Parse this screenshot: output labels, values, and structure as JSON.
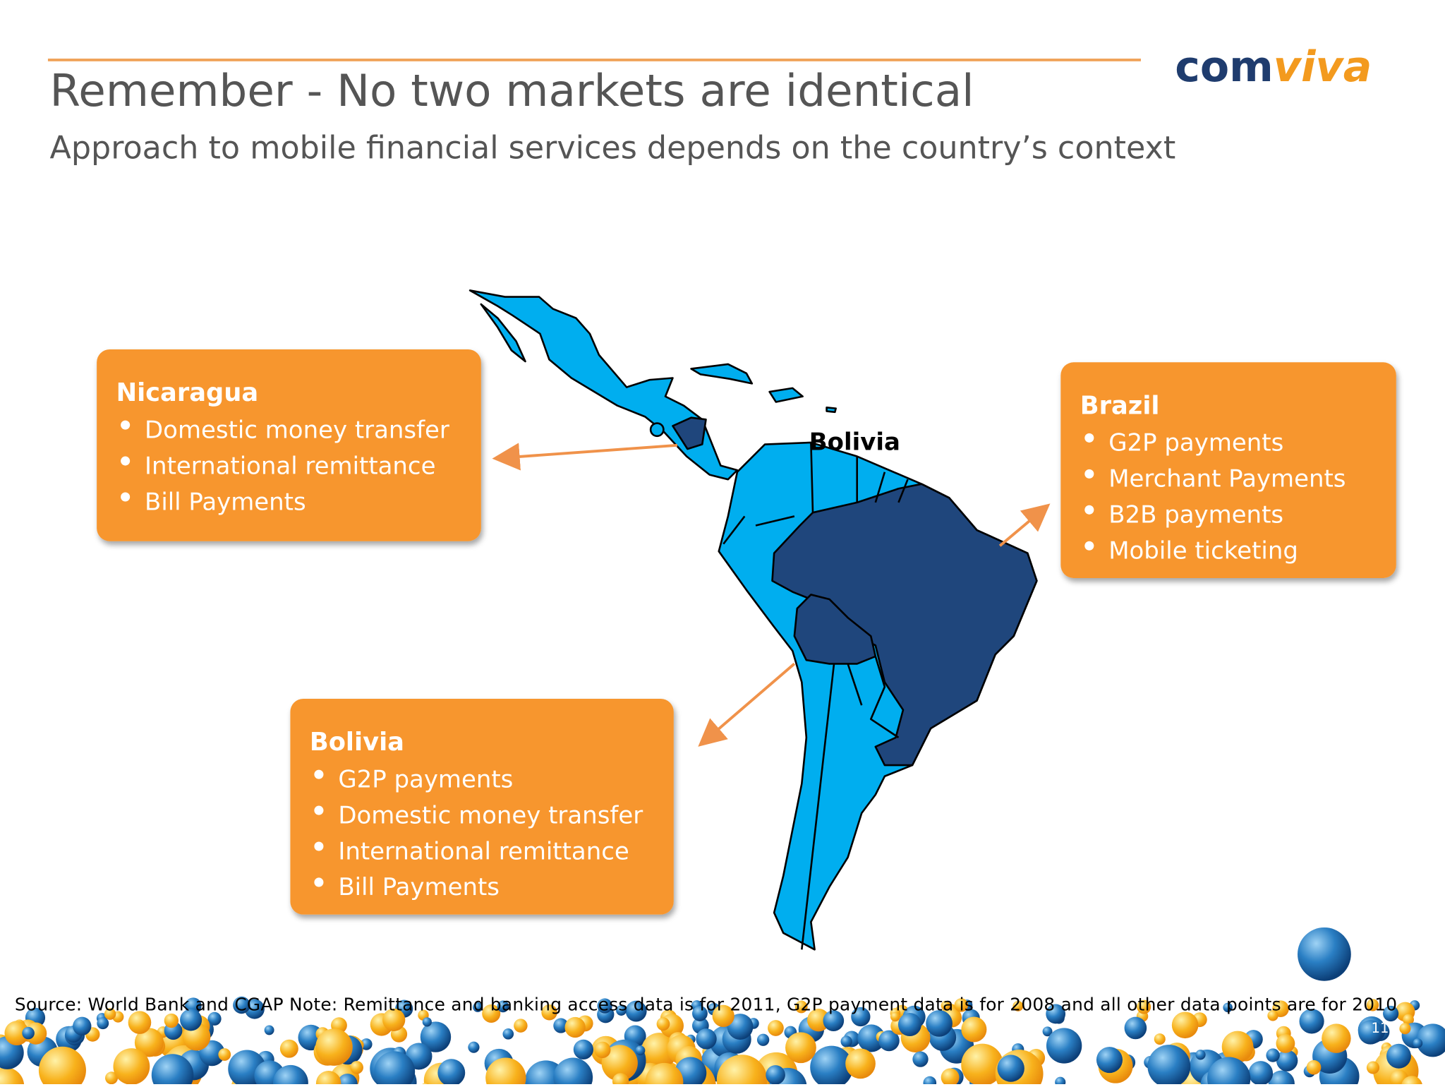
{
  "header": {
    "title": "Remember - No two markets are identical",
    "subtitle": "Approach to mobile financial services depends on the country’s context",
    "logo": [
      "com",
      "viva"
    ]
  },
  "map": {
    "label": "Bolivia"
  },
  "boxes": [
    {
      "title": "Nicaragua",
      "items": [
        "Domestic money transfer",
        "International remittance",
        "Bill Payments"
      ]
    },
    {
      "title": "Brazil",
      "items": [
        "G2P payments",
        "Merchant Payments",
        "B2B payments",
        "Mobile ticketing"
      ]
    },
    {
      "title": "Bolivia",
      "items": [
        "G2P payments",
        "Domestic money transfer",
        "International remittance",
        "Bill Payments"
      ]
    }
  ],
  "footer": {
    "source": "Source: World Bank and CGAP    Note: Remittance and banking access data is for 2011, G2P payment data is for 2008 and all other data points are for 2010",
    "page": "11"
  }
}
